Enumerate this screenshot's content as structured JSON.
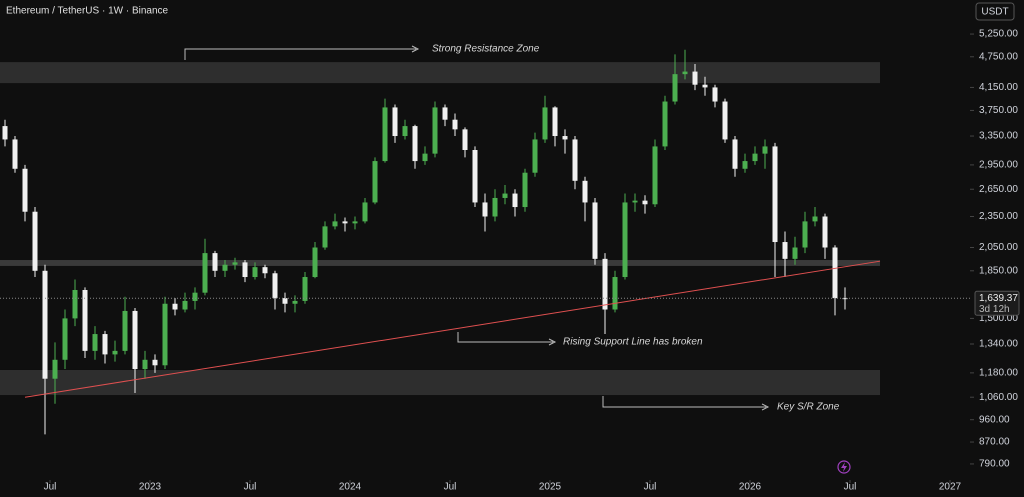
{
  "chart_data": {
    "type": "candlestick",
    "title": "Ethereum / TetherUS · 1W · Binance",
    "currency": "USDT",
    "log_y": true,
    "grid": false,
    "up_color": "#4caf50",
    "down_color": "#f0f0f0",
    "xlim": [
      0,
      97
    ],
    "xticks": [
      {
        "value": 5,
        "label": "Jul"
      },
      {
        "value": 15,
        "label": "2023"
      },
      {
        "value": 25,
        "label": "Jul"
      },
      {
        "value": 35,
        "label": "2024"
      },
      {
        "value": 45,
        "label": "Jul"
      },
      {
        "value": 55,
        "label": "2025"
      },
      {
        "value": 65,
        "label": "Jul"
      },
      {
        "value": 75,
        "label": "2026"
      },
      {
        "value": 85,
        "label": "Jul"
      },
      {
        "value": 95,
        "label": "2027"
      }
    ],
    "ylim": [
      736,
      6100
    ],
    "yticks": [
      {
        "value": 5250,
        "label": "5,250.00"
      },
      {
        "value": 4750,
        "label": "4,750.00"
      },
      {
        "value": 4150,
        "label": "4,150.00"
      },
      {
        "value": 3750,
        "label": "3,750.00"
      },
      {
        "value": 3350,
        "label": "3,350.00"
      },
      {
        "value": 2950,
        "label": "2,950.00"
      },
      {
        "value": 2650,
        "label": "2,650.00"
      },
      {
        "value": 2350,
        "label": "2,350.00"
      },
      {
        "value": 2050,
        "label": "2,050.00"
      },
      {
        "value": 1850,
        "label": "1,850.00"
      },
      {
        "value": 1500,
        "label": "1,500.00"
      },
      {
        "value": 1340,
        "label": "1,340.00"
      },
      {
        "value": 1180,
        "label": "1,180.00"
      },
      {
        "value": 1060,
        "label": "1,060.00"
      },
      {
        "value": 960,
        "label": "960.00"
      },
      {
        "value": 870,
        "label": "870.00"
      },
      {
        "value": 790,
        "label": "790.00"
      }
    ],
    "open": [
      3500,
      3300,
      2900,
      2400,
      1850,
      1150,
      1250,
      1500,
      1700,
      1300,
      1400,
      1280,
      1300,
      1550,
      1200,
      1250,
      1220,
      1600,
      1560,
      1620,
      1680,
      2000,
      1850,
      1900,
      1920,
      1800,
      1880,
      1830,
      1640,
      1600,
      1620,
      1800,
      2050,
      2250,
      2300,
      2280,
      2300,
      2500,
      3000,
      3800,
      3350,
      3500,
      3000,
      3100,
      3800,
      3600,
      3450,
      3150,
      2500,
      2350,
      2550,
      2600,
      2450,
      2850,
      3300,
      3800,
      3350,
      3300,
      2750,
      2500,
      1950,
      1560,
      1800,
      2500,
      2520,
      2480,
      3200,
      3900,
      4400,
      4450,
      4200,
      4150,
      3900,
      3300,
      2900,
      3000,
      3100,
      3200,
      2100,
      1950,
      2050,
      2300,
      2350,
      2050,
      1640
    ],
    "high": [
      3600,
      3350,
      2950,
      2450,
      1900,
      1350,
      1560,
      1780,
      1720,
      1450,
      1420,
      1360,
      1650,
      1570,
      1300,
      1280,
      1650,
      1640,
      1680,
      1720,
      2130,
      2020,
      1940,
      1960,
      1940,
      1920,
      1900,
      1850,
      1680,
      1660,
      1840,
      2100,
      2300,
      2380,
      2340,
      2350,
      2550,
      3050,
      3950,
      3850,
      3600,
      3520,
      3200,
      3900,
      3850,
      3700,
      3480,
      3200,
      2600,
      2650,
      2700,
      2650,
      2900,
      3400,
      4000,
      3820,
      3450,
      3350,
      2800,
      2550,
      2000,
      1850,
      2600,
      2600,
      2580,
      3300,
      4000,
      4800,
      4900,
      4600,
      4350,
      4200,
      3950,
      3350,
      3100,
      3200,
      3300,
      3250,
      2200,
      2150,
      2400,
      2450,
      2380,
      2070,
      1720
    ],
    "low": [
      3200,
      2850,
      2300,
      1800,
      900,
      1030,
      1200,
      1450,
      1260,
      1250,
      1230,
      1240,
      1280,
      1080,
      1150,
      1180,
      1200,
      1520,
      1540,
      1560,
      1660,
      1800,
      1800,
      1860,
      1760,
      1780,
      1790,
      1560,
      1540,
      1540,
      1600,
      1790,
      2030,
      2220,
      2200,
      2220,
      2280,
      2480,
      2980,
      3250,
      3300,
      2900,
      2950,
      3050,
      3500,
      3350,
      3050,
      2450,
      2200,
      2300,
      2480,
      2350,
      2400,
      2800,
      3250,
      3200,
      3100,
      2650,
      2300,
      1900,
      1400,
      1540,
      1780,
      2400,
      2380,
      2450,
      3150,
      3850,
      4300,
      4100,
      4000,
      3800,
      3250,
      2800,
      2850,
      2950,
      2900,
      1800,
      1800,
      1900,
      2000,
      2250,
      1950,
      1520,
      1560
    ],
    "close": [
      3300,
      2900,
      2400,
      1850,
      1150,
      1250,
      1500,
      1700,
      1300,
      1400,
      1280,
      1300,
      1550,
      1200,
      1250,
      1220,
      1600,
      1560,
      1620,
      1680,
      2000,
      1850,
      1900,
      1920,
      1800,
      1880,
      1830,
      1640,
      1600,
      1620,
      1800,
      2050,
      2250,
      2300,
      2280,
      2300,
      2500,
      3000,
      3800,
      3350,
      3500,
      3000,
      3100,
      3800,
      3600,
      3450,
      3150,
      2500,
      2350,
      2550,
      2600,
      2450,
      2850,
      3300,
      3800,
      3350,
      3300,
      2750,
      2500,
      1950,
      1560,
      1800,
      2500,
      2520,
      2480,
      3200,
      3900,
      4400,
      4450,
      4200,
      4150,
      3900,
      3300,
      2900,
      3000,
      3100,
      3200,
      2100,
      1950,
      2050,
      2300,
      2350,
      2050,
      1640,
      1639.37
    ],
    "last_price": {
      "value": 1639.37,
      "label": "1,639.37"
    },
    "countdown": "3d 12h",
    "zones": [
      {
        "low": 4230,
        "high": 4640,
        "color": "#2e2e2e"
      },
      {
        "low": 1890,
        "high": 1940,
        "color": "#3a3a3a"
      },
      {
        "low": 1070,
        "high": 1195,
        "color": "#2e2e2e"
      }
    ],
    "trendline": {
      "x": [
        2.5,
        88
      ],
      "y": [
        1060,
        1930
      ],
      "color": "#e05050"
    },
    "annotations": [
      "Strong Resistance Zone",
      "Rising Support Line has broken",
      "Key S/R Zone"
    ]
  }
}
